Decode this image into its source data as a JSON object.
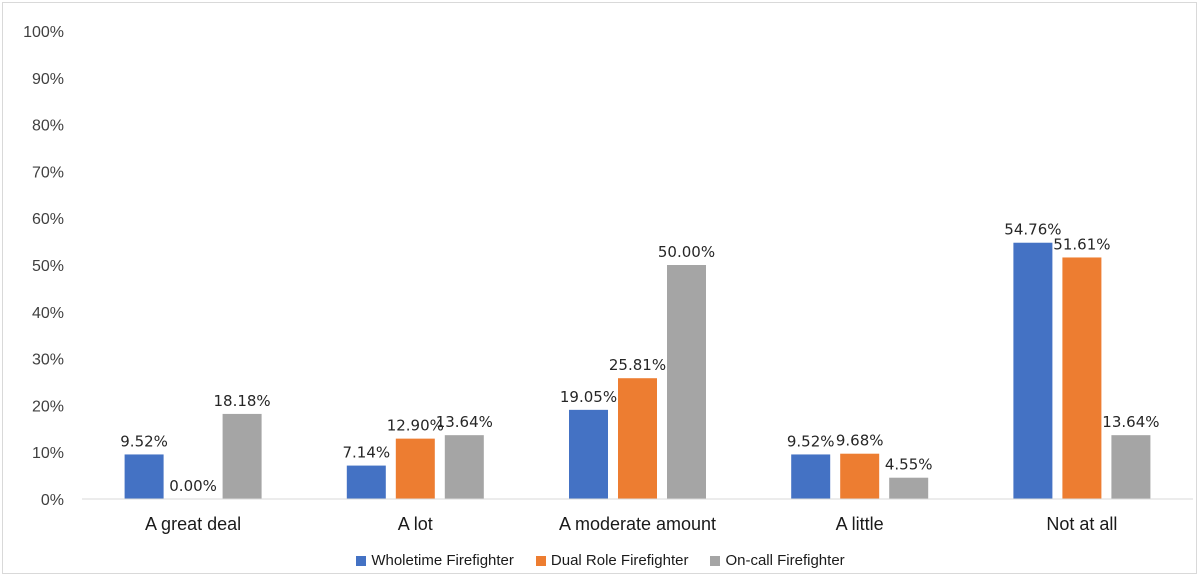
{
  "chart_data": {
    "type": "bar",
    "categories": [
      "A great deal",
      "A lot",
      "A moderate amount",
      "A little",
      "Not at all"
    ],
    "series": [
      {
        "name": "Wholetime Firefighter",
        "color": "#4472c4",
        "values": [
          9.52,
          7.14,
          19.05,
          9.52,
          54.76
        ],
        "labels": [
          "9.52%",
          "7.14%",
          "19.05%",
          "9.52%",
          "54.76%"
        ]
      },
      {
        "name": "Dual Role Firefighter",
        "color": "#ed7d31",
        "values": [
          0.0,
          12.9,
          25.81,
          9.68,
          51.61
        ],
        "labels": [
          "0.00%",
          "12.90%",
          "25.81%",
          "9.68%",
          "51.61%"
        ]
      },
      {
        "name": "On-call Firefighter",
        "color": "#a5a5a5",
        "values": [
          18.18,
          13.64,
          50.0,
          4.55,
          13.64
        ],
        "labels": [
          "18.18%",
          "13.64%",
          "50.00%",
          "4.55%",
          "13.64%"
        ]
      }
    ],
    "yticks": [
      "0%",
      "10%",
      "20%",
      "30%",
      "40%",
      "50%",
      "60%",
      "70%",
      "80%",
      "90%",
      "100%"
    ],
    "ylim": [
      0,
      100
    ],
    "grid": false,
    "legend_position": "bottom",
    "title": "",
    "xlabel": "",
    "ylabel": ""
  }
}
